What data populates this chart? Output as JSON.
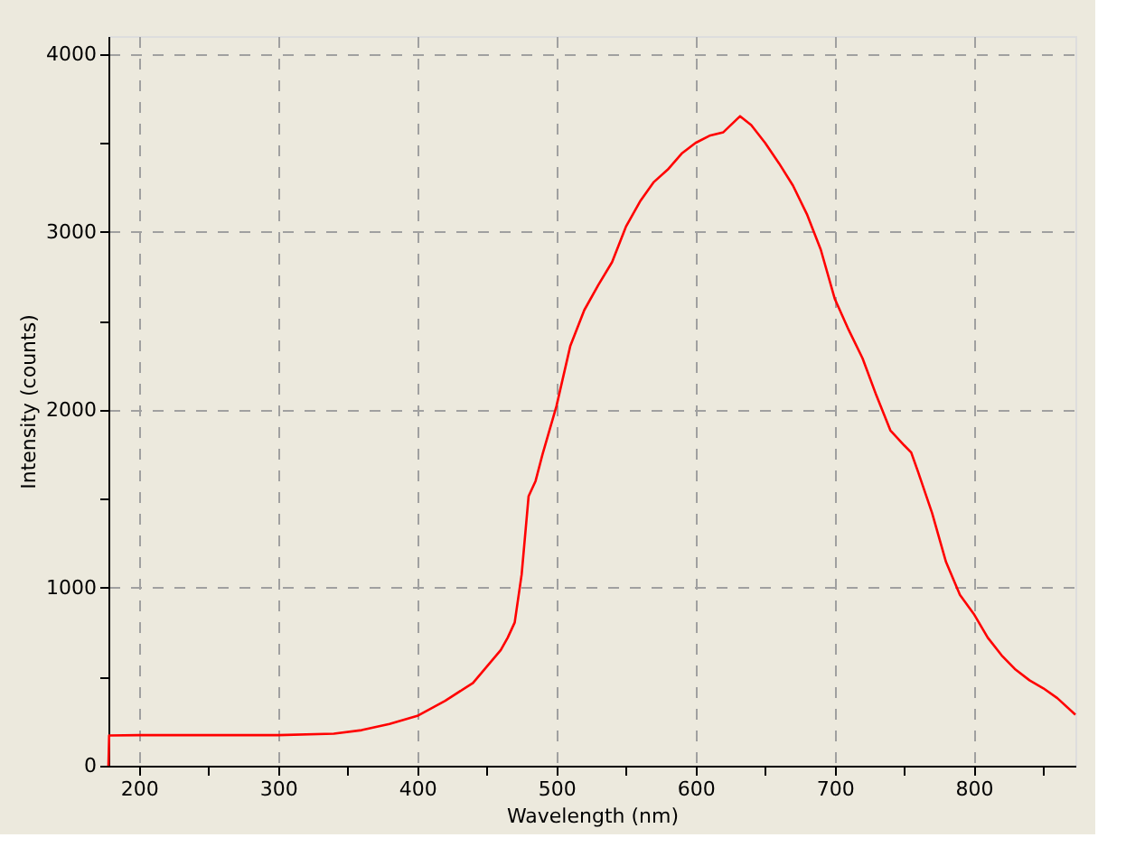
{
  "chart_data": {
    "type": "line",
    "xlabel": "Wavelength (nm)",
    "ylabel": "Intensity (counts)",
    "x": [
      178,
      178.5,
      200,
      250,
      300,
      340,
      360,
      380,
      400,
      420,
      440,
      460,
      465,
      470,
      475,
      480,
      485,
      490,
      500,
      510,
      520,
      530,
      540,
      550,
      560,
      570,
      580,
      590,
      600,
      610,
      620,
      632,
      640,
      650,
      660,
      670,
      680,
      690,
      700,
      710,
      720,
      730,
      740,
      750,
      755,
      760,
      770,
      780,
      790,
      800,
      810,
      820,
      830,
      840,
      850,
      860,
      873
    ],
    "series": [
      {
        "color": "#ff0000",
        "values": [
          0,
          170,
          172,
          172,
          172,
          180,
          200,
          235,
          280,
          365,
          465,
          650,
          720,
          805,
          1075,
          1515,
          1600,
          1750,
          2020,
          2360,
          2560,
          2700,
          2830,
          3030,
          3170,
          3280,
          3350,
          3440,
          3500,
          3540,
          3560,
          3650,
          3600,
          3500,
          3385,
          3260,
          3100,
          2900,
          2625,
          2450,
          2290,
          2080,
          1885,
          1800,
          1760,
          1650,
          1420,
          1145,
          960,
          853,
          720,
          620,
          540,
          480,
          435,
          380,
          287
        ]
      }
    ],
    "xlim": [
      178,
      873
    ],
    "ylim": [
      0,
      4100
    ],
    "xticks": [
      {
        "value": 200,
        "label": "200"
      },
      {
        "value": 250,
        "label": null
      },
      {
        "value": 300,
        "label": "300"
      },
      {
        "value": 350,
        "label": null
      },
      {
        "value": 400,
        "label": "400"
      },
      {
        "value": 450,
        "label": null
      },
      {
        "value": 500,
        "label": "500"
      },
      {
        "value": 550,
        "label": null
      },
      {
        "value": 600,
        "label": "600"
      },
      {
        "value": 650,
        "label": null
      },
      {
        "value": 700,
        "label": "700"
      },
      {
        "value": 750,
        "label": null
      },
      {
        "value": 800,
        "label": "800"
      },
      {
        "value": 850,
        "label": null
      }
    ],
    "yticks": [
      0,
      {
        "value": 500,
        "label": null
      },
      1000,
      {
        "value": 1500,
        "label": null
      },
      2000,
      {
        "value": 2500,
        "label": null
      },
      3000,
      {
        "value": 3500,
        "label": null
      },
      4000
    ],
    "grid": true,
    "legend": false,
    "marker": "none",
    "line_style": "solid"
  }
}
